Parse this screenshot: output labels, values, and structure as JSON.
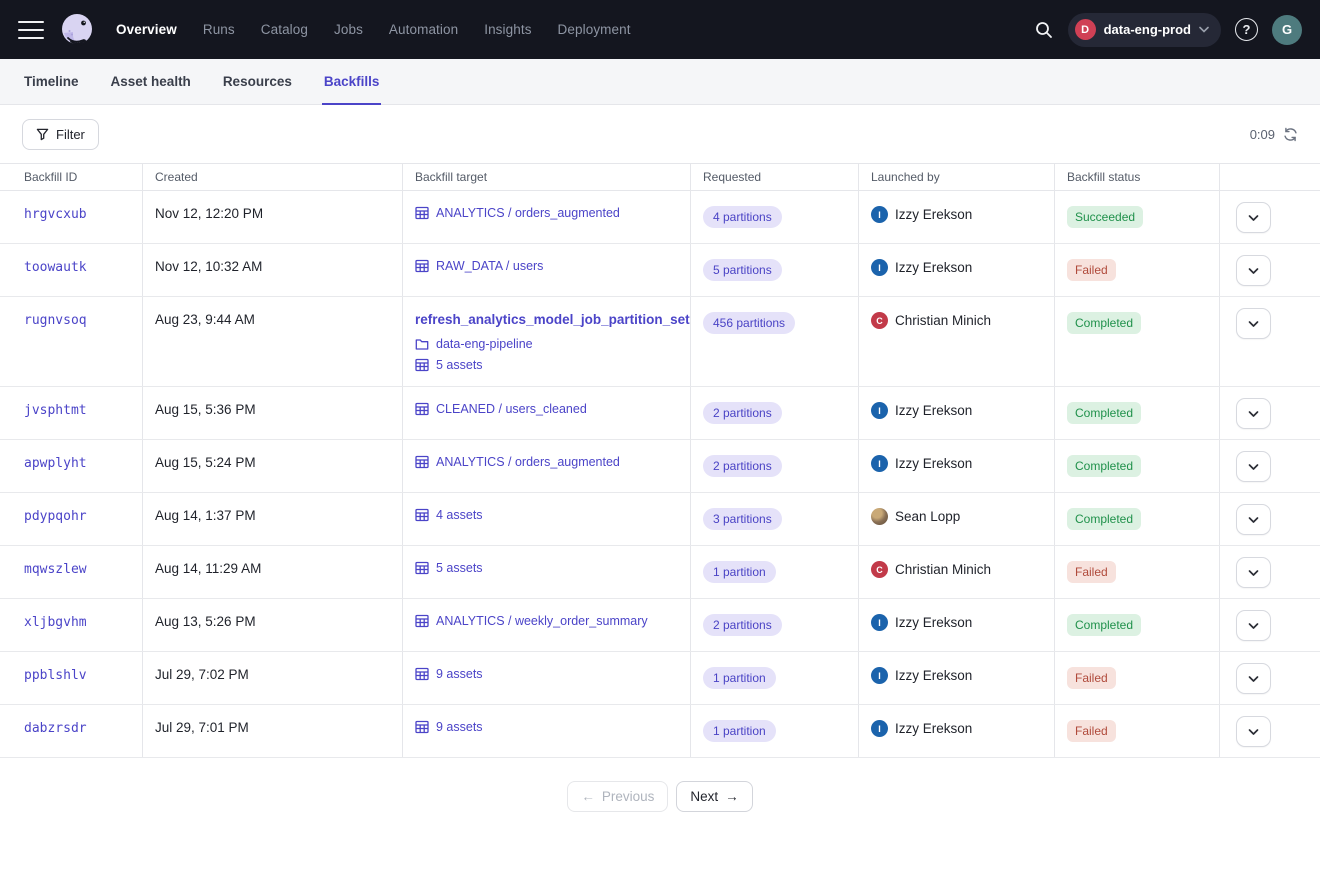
{
  "colors": {
    "accent": "#4B44C8",
    "topbar_bg": "#14161F",
    "workspace_dot": "#D04055",
    "user_avatar_bg": "#4E7B7E",
    "launcher_blue": "#1B63AC",
    "launcher_red": "#C23A49",
    "success_bg": "#DCF1E2",
    "success_text": "#20914B",
    "failed_bg": "#F7E2DD",
    "failed_text": "#B04A3B",
    "partition_pill_bg": "#E5E2F9"
  },
  "topnav": {
    "items": [
      {
        "label": "Overview",
        "active": true
      },
      {
        "label": "Runs",
        "active": false
      },
      {
        "label": "Catalog",
        "active": false
      },
      {
        "label": "Jobs",
        "active": false
      },
      {
        "label": "Automation",
        "active": false
      },
      {
        "label": "Insights",
        "active": false
      },
      {
        "label": "Deployment",
        "active": false
      }
    ],
    "workspace": {
      "initial": "D",
      "name": "data-eng-prod"
    },
    "user_initial": "G"
  },
  "tabs": [
    {
      "label": "Timeline",
      "active": false
    },
    {
      "label": "Asset health",
      "active": false
    },
    {
      "label": "Resources",
      "active": false
    },
    {
      "label": "Backfills",
      "active": true
    }
  ],
  "toolbar": {
    "filter_label": "Filter",
    "timer": "0:09"
  },
  "table": {
    "columns": [
      "Backfill ID",
      "Created",
      "Backfill target",
      "Requested",
      "Launched by",
      "Backfill status"
    ],
    "rows": [
      {
        "id": "hrgvcxub",
        "created": "Nov 12, 12:20 PM",
        "target": {
          "lines": [
            {
              "icon": "grid",
              "label": "ANALYTICS / orders_augmented"
            }
          ]
        },
        "requested": "4 partitions",
        "launched_by": {
          "name": "Izzy Erekson",
          "avatar": {
            "type": "initial",
            "letter": "I",
            "color": "#1B63AC"
          }
        },
        "status": {
          "label": "Succeeded",
          "kind": "success"
        }
      },
      {
        "id": "toowautk",
        "created": "Nov 12, 10:32 AM",
        "target": {
          "lines": [
            {
              "icon": "grid",
              "label": "RAW_DATA / users"
            }
          ]
        },
        "requested": "5 partitions",
        "launched_by": {
          "name": "Izzy Erekson",
          "avatar": {
            "type": "initial",
            "letter": "I",
            "color": "#1B63AC"
          }
        },
        "status": {
          "label": "Failed",
          "kind": "failed"
        }
      },
      {
        "id": "rugnvsoq",
        "created": "Aug 23, 9:44 AM",
        "target": {
          "title": "refresh_analytics_model_job_partition_set",
          "lines": [
            {
              "icon": "folder",
              "label": "data-eng-pipeline"
            },
            {
              "icon": "grid",
              "label": "5 assets"
            }
          ]
        },
        "requested": "456 partitions",
        "launched_by": {
          "name": "Christian Minich",
          "avatar": {
            "type": "initial",
            "letter": "C",
            "color": "#C23A49"
          }
        },
        "status": {
          "label": "Completed",
          "kind": "success"
        }
      },
      {
        "id": "jvsphtmt",
        "created": "Aug 15, 5:36 PM",
        "target": {
          "lines": [
            {
              "icon": "grid",
              "label": "CLEANED / users_cleaned"
            }
          ]
        },
        "requested": "2 partitions",
        "launched_by": {
          "name": "Izzy Erekson",
          "avatar": {
            "type": "initial",
            "letter": "I",
            "color": "#1B63AC"
          }
        },
        "status": {
          "label": "Completed",
          "kind": "success"
        }
      },
      {
        "id": "apwplyht",
        "created": "Aug 15, 5:24 PM",
        "target": {
          "lines": [
            {
              "icon": "grid",
              "label": "ANALYTICS / orders_augmented"
            }
          ]
        },
        "requested": "2 partitions",
        "launched_by": {
          "name": "Izzy Erekson",
          "avatar": {
            "type": "initial",
            "letter": "I",
            "color": "#1B63AC"
          }
        },
        "status": {
          "label": "Completed",
          "kind": "success"
        }
      },
      {
        "id": "pdypqohr",
        "created": "Aug 14, 1:37 PM",
        "target": {
          "lines": [
            {
              "icon": "grid",
              "label": "4 assets"
            }
          ]
        },
        "requested": "3 partitions",
        "launched_by": {
          "name": "Sean Lopp",
          "avatar": {
            "type": "photo"
          }
        },
        "status": {
          "label": "Completed",
          "kind": "success"
        }
      },
      {
        "id": "mqwszlew",
        "created": "Aug 14, 11:29 AM",
        "target": {
          "lines": [
            {
              "icon": "grid",
              "label": "5 assets"
            }
          ]
        },
        "requested": "1 partition",
        "launched_by": {
          "name": "Christian Minich",
          "avatar": {
            "type": "initial",
            "letter": "C",
            "color": "#C23A49"
          }
        },
        "status": {
          "label": "Failed",
          "kind": "failed"
        }
      },
      {
        "id": "xljbgvhm",
        "created": "Aug 13, 5:26 PM",
        "target": {
          "lines": [
            {
              "icon": "grid",
              "label": "ANALYTICS / weekly_order_summary"
            }
          ]
        },
        "requested": "2 partitions",
        "launched_by": {
          "name": "Izzy Erekson",
          "avatar": {
            "type": "initial",
            "letter": "I",
            "color": "#1B63AC"
          }
        },
        "status": {
          "label": "Completed",
          "kind": "success"
        }
      },
      {
        "id": "ppblshlv",
        "created": "Jul 29, 7:02 PM",
        "target": {
          "lines": [
            {
              "icon": "grid",
              "label": "9 assets"
            }
          ]
        },
        "requested": "1 partition",
        "launched_by": {
          "name": "Izzy Erekson",
          "avatar": {
            "type": "initial",
            "letter": "I",
            "color": "#1B63AC"
          }
        },
        "status": {
          "label": "Failed",
          "kind": "failed"
        }
      },
      {
        "id": "dabzrsdr",
        "created": "Jul 29, 7:01 PM",
        "target": {
          "lines": [
            {
              "icon": "grid",
              "label": "9 assets"
            }
          ]
        },
        "requested": "1 partition",
        "launched_by": {
          "name": "Izzy Erekson",
          "avatar": {
            "type": "initial",
            "letter": "I",
            "color": "#1B63AC"
          }
        },
        "status": {
          "label": "Failed",
          "kind": "failed"
        }
      }
    ]
  },
  "pagination": {
    "previous": "Previous",
    "next": "Next"
  }
}
